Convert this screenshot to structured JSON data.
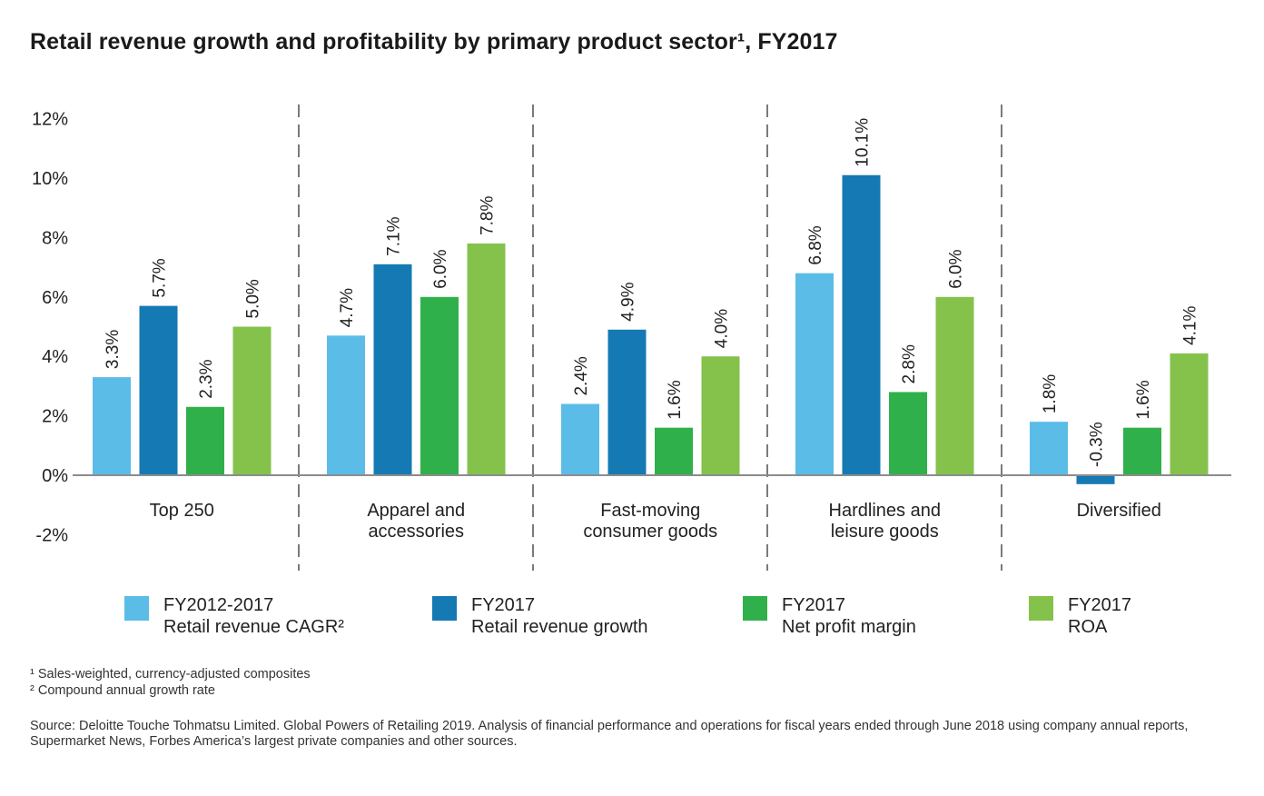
{
  "title": "Retail revenue growth and profitability by primary product sector¹, FY2017",
  "chart_data": {
    "type": "bar",
    "title": "Retail revenue growth and profitability by primary product sector¹, FY2017",
    "categories": [
      [
        "Top 250"
      ],
      [
        "Apparel and",
        "accessories"
      ],
      [
        "Fast-moving",
        "consumer goods"
      ],
      [
        "Hardlines and",
        "leisure goods"
      ],
      [
        "Diversified"
      ]
    ],
    "series": [
      {
        "name": "FY2012-2017 Retail revenue CAGR²",
        "legend_lines": [
          "FY2012-2017",
          "Retail revenue CAGR²"
        ],
        "color": "#5bbce8",
        "values": [
          3.3,
          4.7,
          2.4,
          6.8,
          1.8
        ],
        "labels": [
          "3.3%",
          "4.7%",
          "2.4%",
          "6.8%",
          "1.8%"
        ]
      },
      {
        "name": "FY2017 Retail revenue growth",
        "legend_lines": [
          "FY2017",
          "Retail revenue growth"
        ],
        "color": "#1579b3",
        "values": [
          5.7,
          7.1,
          4.9,
          10.1,
          -0.3
        ],
        "labels": [
          "5.7%",
          "7.1%",
          "4.9%",
          "10.1%",
          "-0.3%"
        ]
      },
      {
        "name": "FY2017 Net profit margin",
        "legend_lines": [
          "FY2017",
          "Net profit margin"
        ],
        "color": "#30b04b",
        "values": [
          2.3,
          6.0,
          1.6,
          2.8,
          1.6
        ],
        "labels": [
          "2.3%",
          "6.0%",
          "1.6%",
          "2.8%",
          "1.6%"
        ]
      },
      {
        "name": "FY2017 ROA",
        "legend_lines": [
          "FY2017",
          "ROA"
        ],
        "color": "#84c24c",
        "values": [
          5.0,
          7.8,
          4.0,
          6.0,
          4.1
        ],
        "labels": [
          "5.0%",
          "7.8%",
          "4.0%",
          "6.0%",
          "4.1%"
        ]
      }
    ],
    "yticks": [
      "12%",
      "10%",
      "8%",
      "6%",
      "4%",
      "2%",
      "0%",
      "-2%"
    ],
    "ytick_values": [
      12,
      10,
      8,
      6,
      4,
      2,
      0,
      -2
    ],
    "ylim": [
      -2,
      12
    ],
    "grid": false,
    "category_separators": "dashed",
    "legend_position": "bottom"
  },
  "footnotes": [
    "¹ Sales-weighted, currency-adjusted composites",
    "² Compound annual growth rate"
  ],
  "source": "Source: Deloitte Touche Tohmatsu Limited. Global Powers of Retailing 2019. Analysis of financial performance and operations for fiscal years ended through June 2018 using company annual reports, Supermarket News, Forbes America’s largest private companies and other sources."
}
